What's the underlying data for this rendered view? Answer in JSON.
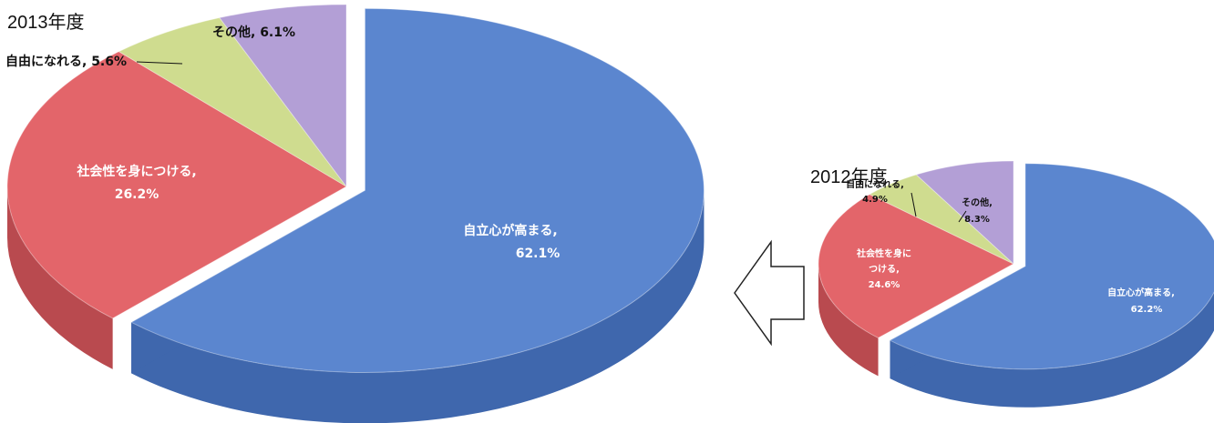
{
  "chart_data": [
    {
      "type": "pie",
      "title": "2013年度",
      "slices": [
        {
          "label": "自立心が高まる,",
          "pct_label": "62.1%",
          "value": 62.1,
          "color": "#5b86cf",
          "side": "#3f67ad"
        },
        {
          "label": "社会性を身につける,",
          "pct_label": "26.2%",
          "value": 26.2,
          "color": "#e3656a",
          "side": "#b94a4f"
        },
        {
          "label": "自由になれる,",
          "pct_label": "5.6%",
          "value": 5.6,
          "color": "#cfdc8f",
          "side": "#a8b76a"
        },
        {
          "label": "その他,",
          "pct_label": "6.1%",
          "value": 6.1,
          "color": "#b39fd6",
          "side": "#8b78b0"
        }
      ]
    },
    {
      "type": "pie",
      "title": "2012年度",
      "slices": [
        {
          "label": "自立心が高まる,",
          "pct_label": "62.2%",
          "value": 62.2,
          "color": "#5b86cf",
          "side": "#3f67ad"
        },
        {
          "label": "社会性を身につける,",
          "pct_label": "24.6%",
          "value": 24.6,
          "color": "#e3656a",
          "side": "#b94a4f"
        },
        {
          "label": "自由になれる,",
          "pct_label": "4.9%",
          "value": 4.9,
          "color": "#cfdc8f",
          "side": "#a8b76a"
        },
        {
          "label": "その他,",
          "pct_label": "8.3%",
          "value": 8.3,
          "color": "#b39fd6",
          "side": "#8b78b0"
        }
      ]
    }
  ],
  "arrow_color": "#222222"
}
